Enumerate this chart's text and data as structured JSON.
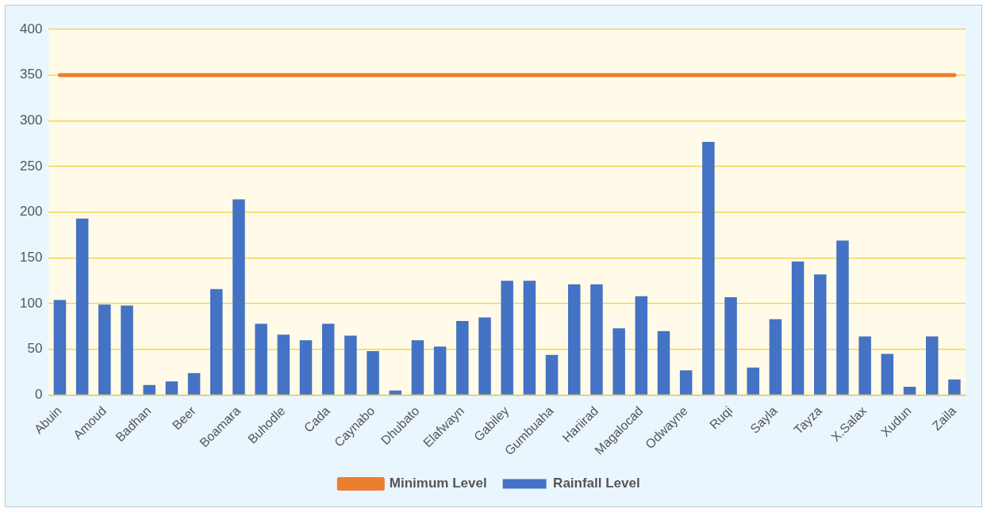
{
  "chart_data": {
    "type": "bar",
    "categories": [
      "Abuin",
      null,
      "Amoud",
      null,
      "Badhan",
      null,
      "Beer",
      null,
      "Boamara",
      null,
      "Buhodle",
      null,
      "Cada",
      null,
      "Caynabo",
      null,
      "Dhubato",
      null,
      "Elafwayn",
      null,
      "Gabiley",
      null,
      "Gumbuaha",
      null,
      "Hariirad",
      null,
      "Magalocad",
      null,
      "Odwayne",
      null,
      "Ruqi",
      null,
      "Sayla",
      null,
      "Tayza",
      null,
      "X.Salax",
      null,
      "Xudun",
      null,
      "Zaila"
    ],
    "series": [
      {
        "name": "Rainfall Level",
        "color": "#4472c4",
        "values": [
          104,
          193,
          99,
          98,
          11,
          15,
          24,
          116,
          214,
          78,
          66,
          60,
          78,
          65,
          48,
          5,
          60,
          53,
          81,
          85,
          125,
          125,
          44,
          121,
          121,
          73,
          108,
          70,
          27,
          277,
          107,
          30,
          83,
          146,
          132,
          169,
          64,
          45,
          9,
          64,
          17
        ]
      },
      {
        "name": "Minimum Level",
        "type": "line",
        "color": "#ed7d31",
        "values": [
          350,
          350,
          350,
          350,
          350,
          350,
          350,
          350,
          350,
          350,
          350,
          350,
          350,
          350,
          350,
          350,
          350,
          350,
          350,
          350,
          350,
          350,
          350,
          350,
          350,
          350,
          350,
          350,
          350,
          350,
          350,
          350,
          350,
          350,
          350,
          350,
          350,
          350,
          350,
          350,
          350
        ]
      }
    ],
    "ylim": [
      0,
      400
    ],
    "yticks": [
      0,
      50,
      100,
      150,
      200,
      250,
      300,
      350,
      400
    ],
    "grid": "y",
    "legend": "bottom",
    "marker": "none"
  }
}
